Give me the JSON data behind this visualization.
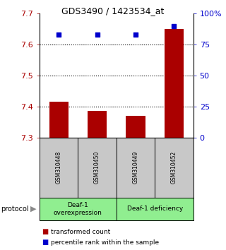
{
  "title": "GDS3490 / 1423534_at",
  "samples": [
    "GSM310448",
    "GSM310450",
    "GSM310449",
    "GSM310452"
  ],
  "bar_values": [
    7.415,
    7.385,
    7.37,
    7.65
  ],
  "dot_percentiles": [
    83,
    83,
    83,
    90
  ],
  "ylim_left": [
    7.3,
    7.7
  ],
  "ylim_right": [
    0,
    100
  ],
  "yticks_left": [
    7.3,
    7.4,
    7.5,
    7.6,
    7.7
  ],
  "yticks_right": [
    0,
    25,
    50,
    75,
    100
  ],
  "ytick_labels_right": [
    "0",
    "25",
    "50",
    "75",
    "100%"
  ],
  "bar_color": "#aa0000",
  "dot_color": "#0000cc",
  "bar_width": 0.5,
  "group_labels": [
    "Deaf-1\noverexpression",
    "Deaf-1 deficiency"
  ],
  "group_splits": [
    2
  ],
  "protocol_label": "protocol",
  "legend_bar_label": "transformed count",
  "legend_dot_label": "percentile rank within the sample",
  "background_color": "#ffffff",
  "sample_bg_color": "#c8c8c8",
  "group_bg_color": "#90ee90",
  "title_fontsize": 9,
  "tick_fontsize": 8
}
